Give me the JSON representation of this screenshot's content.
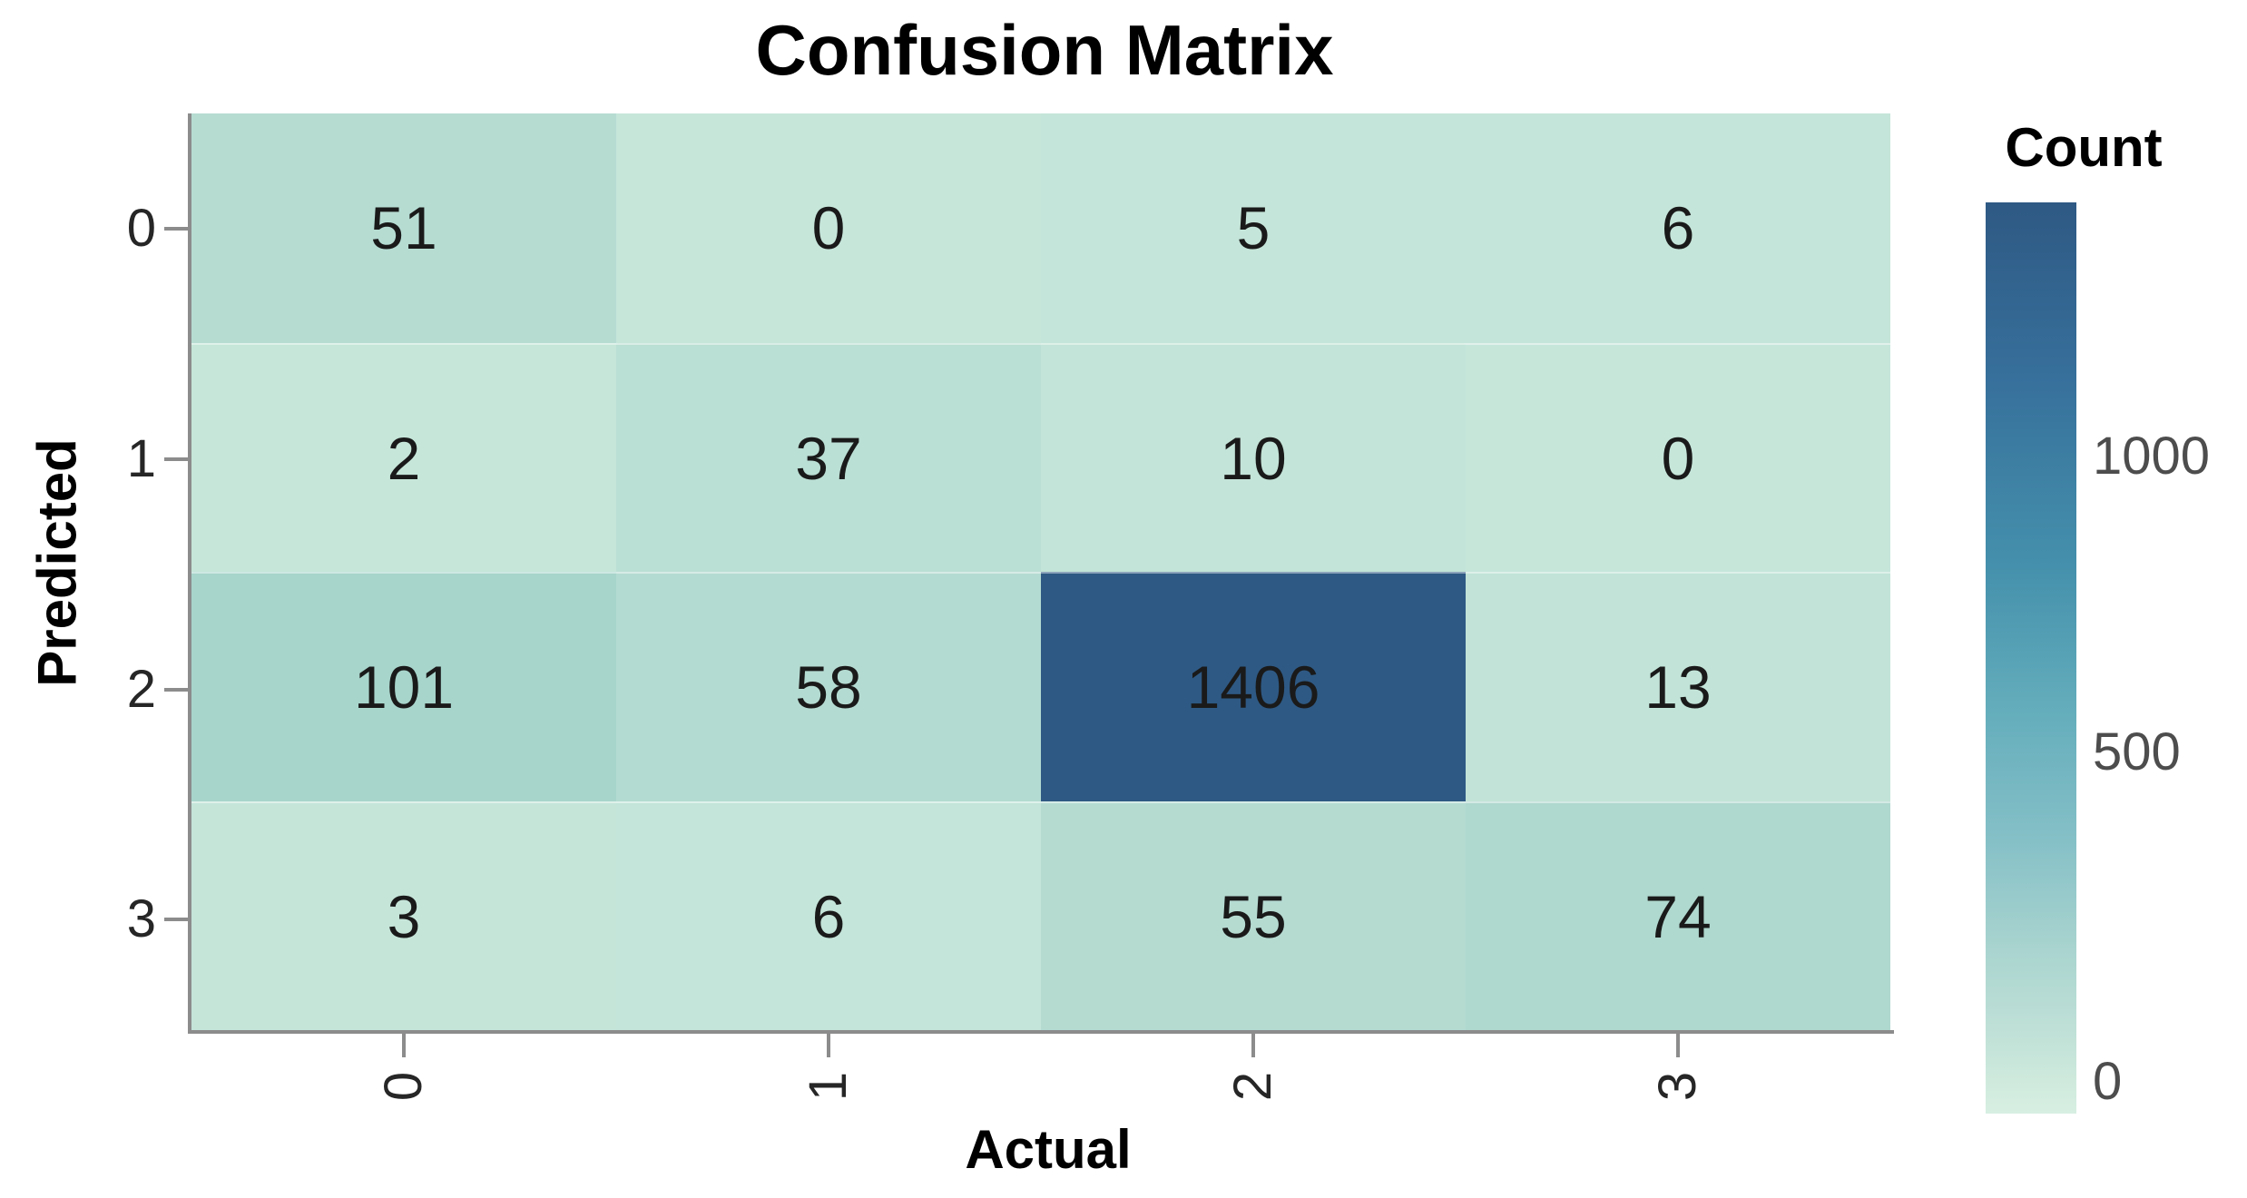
{
  "title": "Confusion Matrix",
  "chart_data": {
    "type": "heatmap",
    "title": "Confusion Matrix",
    "xlabel": "Actual",
    "ylabel": "Predicted",
    "x_tick_labels": [
      "0",
      "1",
      "2",
      "3"
    ],
    "y_tick_labels": [
      "0",
      "1",
      "2",
      "3"
    ],
    "x_tick_rotation_deg": 90,
    "values": [
      [
        51,
        0,
        5,
        6
      ],
      [
        2,
        37,
        10,
        0
      ],
      [
        101,
        58,
        1406,
        13
      ],
      [
        3,
        6,
        55,
        74
      ]
    ],
    "cell_colors": [
      [
        "#b6dcd2",
        "#c6e6da",
        "#c4e5d9",
        "#c4e5d9"
      ],
      [
        "#c5e6d9",
        "#badfd4",
        "#c3e4d8",
        "#c6e6da"
      ],
      [
        "#a7d5cb",
        "#b4dbd1",
        "#2e5984",
        "#c2e4d8"
      ],
      [
        "#c5e5d9",
        "#c4e5d9",
        "#b5dbd1",
        "#afd8ce"
      ]
    ],
    "value_text_color": "#1a1a1a",
    "grid": false,
    "legend_position": "right",
    "colorbar": {
      "label": "Count",
      "vmin": 0,
      "vmax": 1406,
      "ticks": [
        "1000",
        "500",
        "0"
      ],
      "tick_fractions_from_top": [
        0.279,
        0.604,
        0.965
      ],
      "gradient_stops": [
        {
          "pos": 0,
          "color": "#2e5984"
        },
        {
          "pos": 0.2,
          "color": "#37719c"
        },
        {
          "pos": 0.4,
          "color": "#4590ac"
        },
        {
          "pos": 0.55,
          "color": "#62acbb"
        },
        {
          "pos": 0.7,
          "color": "#85c0c7"
        },
        {
          "pos": 0.82,
          "color": "#a9d4cf"
        },
        {
          "pos": 0.92,
          "color": "#c2e2d8"
        },
        {
          "pos": 0.965,
          "color": "#cfeadd"
        },
        {
          "pos": 1,
          "color": "#d7efe2"
        }
      ]
    }
  },
  "axis_style": {
    "spine_color": "#8c8c8c",
    "tick_mark_color": "#8c8c8c",
    "tick_label_color": "#262626",
    "colorbar_tick_label_color": "#4d4d4d"
  }
}
